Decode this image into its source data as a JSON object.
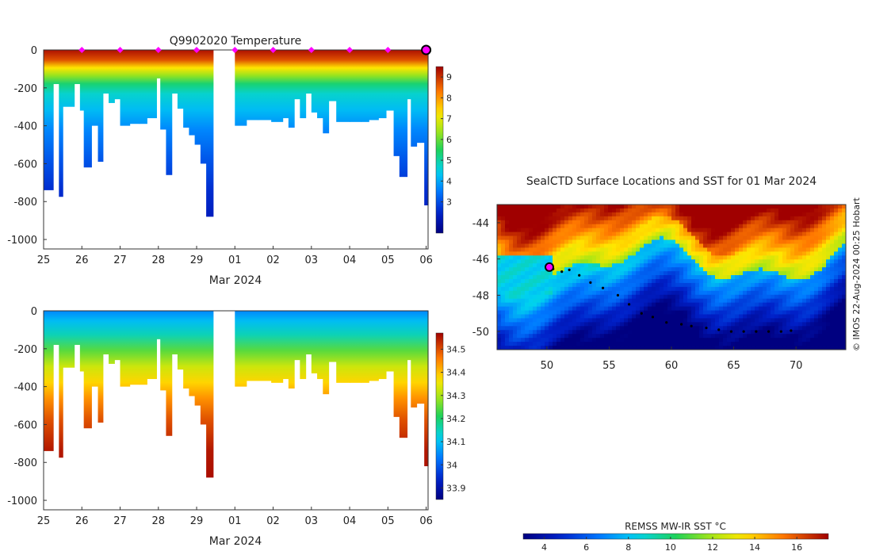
{
  "chart_data": [
    {
      "type": "heatmap",
      "title": "Q9902020  Temperature",
      "xlabel": "Mar 2024",
      "ylabel": "",
      "x_tick_labels": [
        "25",
        "26",
        "27",
        "28",
        "29",
        "01",
        "02",
        "03",
        "04",
        "05",
        "06"
      ],
      "y_tick_labels": [
        "0",
        "-200",
        "-400",
        "-600",
        "-800",
        "-1000"
      ],
      "xlim_days": [
        0,
        10.05
      ],
      "ylim_depth_m": [
        -1050,
        0
      ],
      "colorbar": {
        "ticks": [
          "3",
          "4",
          "5",
          "6",
          "7",
          "8",
          "9"
        ],
        "min": 1.5,
        "max": 9.5
      },
      "gap_days": [
        4.43,
        5.0
      ],
      "profile_markers_days": [
        1,
        2,
        3,
        4,
        5,
        6,
        7,
        8,
        9
      ],
      "current_marker_day": 10,
      "max_depth_per_day": [
        [
          0.0,
          -740
        ],
        [
          0.25,
          -180
        ],
        [
          0.4,
          -775
        ],
        [
          0.5,
          -300
        ],
        [
          0.8,
          -180
        ],
        [
          0.95,
          -320
        ],
        [
          1.05,
          -620
        ],
        [
          1.25,
          -400
        ],
        [
          1.42,
          -590
        ],
        [
          1.55,
          -230
        ],
        [
          1.7,
          -280
        ],
        [
          1.85,
          -260
        ],
        [
          2.0,
          -400
        ],
        [
          2.25,
          -390
        ],
        [
          2.5,
          -390
        ],
        [
          2.7,
          -360
        ],
        [
          2.95,
          -150
        ],
        [
          3.05,
          -420
        ],
        [
          3.2,
          -660
        ],
        [
          3.35,
          -230
        ],
        [
          3.5,
          -310
        ],
        [
          3.65,
          -410
        ],
        [
          3.8,
          -450
        ],
        [
          3.95,
          -500
        ],
        [
          4.1,
          -600
        ],
        [
          4.25,
          -880
        ],
        [
          4.43,
          -880
        ],
        [
          5.0,
          -400
        ],
        [
          5.3,
          -370
        ],
        [
          5.6,
          -370
        ],
        [
          5.95,
          -380
        ],
        [
          6.25,
          -360
        ],
        [
          6.4,
          -410
        ],
        [
          6.55,
          -260
        ],
        [
          6.7,
          -360
        ],
        [
          6.85,
          -230
        ],
        [
          7.0,
          -330
        ],
        [
          7.15,
          -360
        ],
        [
          7.3,
          -440
        ],
        [
          7.45,
          -270
        ],
        [
          7.65,
          -380
        ],
        [
          8.0,
          -380
        ],
        [
          8.3,
          -380
        ],
        [
          8.5,
          -370
        ],
        [
          8.75,
          -360
        ],
        [
          8.95,
          -320
        ],
        [
          9.15,
          -560
        ],
        [
          9.3,
          -670
        ],
        [
          9.5,
          -260
        ],
        [
          9.6,
          -510
        ],
        [
          9.75,
          -490
        ],
        [
          9.85,
          -490
        ],
        [
          9.95,
          -820
        ],
        [
          10.05,
          -820
        ]
      ]
    },
    {
      "type": "heatmap",
      "title": "",
      "xlabel": "Mar 2024",
      "ylabel": "",
      "x_tick_labels": [
        "25",
        "26",
        "27",
        "28",
        "29",
        "01",
        "02",
        "03",
        "04",
        "05",
        "06"
      ],
      "y_tick_labels": [
        "0",
        "-200",
        "-400",
        "-600",
        "-800",
        "-1000"
      ],
      "xlim_days": [
        0,
        10.05
      ],
      "ylim_depth_m": [
        -1050,
        0
      ],
      "colorbar": {
        "ticks": [
          "33.9",
          "34",
          "34.1",
          "34.2",
          "34.3",
          "34.4",
          "34.5"
        ],
        "min": 33.85,
        "max": 34.57
      },
      "gap_days": [
        4.43,
        5.0
      ]
    },
    {
      "type": "heatmap",
      "title": "SealCTD Surface Locations and SST for 01 Mar 2024",
      "xlabel": "",
      "ylabel": "",
      "x_tick_labels": [
        "50",
        "55",
        "60",
        "65",
        "70"
      ],
      "y_tick_labels": [
        "-44",
        "-46",
        "-48",
        "-50"
      ],
      "xlim_lon": [
        46,
        74
      ],
      "ylim_lat": [
        -51,
        -43
      ],
      "track": [
        [
          50.1,
          -46.6
        ],
        [
          50.5,
          -46.55
        ],
        [
          51.2,
          -46.7
        ],
        [
          51.8,
          -46.6
        ],
        [
          52.6,
          -46.9
        ],
        [
          53.5,
          -47.3
        ],
        [
          54.5,
          -47.6
        ],
        [
          55.7,
          -48.0
        ],
        [
          56.6,
          -48.5
        ],
        [
          57.6,
          -49.0
        ],
        [
          58.5,
          -49.2
        ],
        [
          59.6,
          -49.5
        ],
        [
          60.8,
          -49.6
        ],
        [
          61.6,
          -49.7
        ],
        [
          62.8,
          -49.8
        ],
        [
          63.8,
          -49.9
        ],
        [
          64.8,
          -50.0
        ],
        [
          65.8,
          -50.0
        ],
        [
          66.8,
          -50.0
        ],
        [
          67.8,
          -50.0
        ],
        [
          68.8,
          -50.0
        ],
        [
          69.6,
          -49.95
        ]
      ],
      "current_position": [
        50.2,
        -46.45
      ],
      "colorbar": {
        "label": "REMSS MW-IR SST °C",
        "ticks": [
          "4",
          "6",
          "8",
          "10",
          "12",
          "14",
          "16"
        ],
        "min": 3,
        "max": 17.5
      },
      "credit": "© IMOS 22-Aug-2024 00:25 Hobart"
    }
  ]
}
